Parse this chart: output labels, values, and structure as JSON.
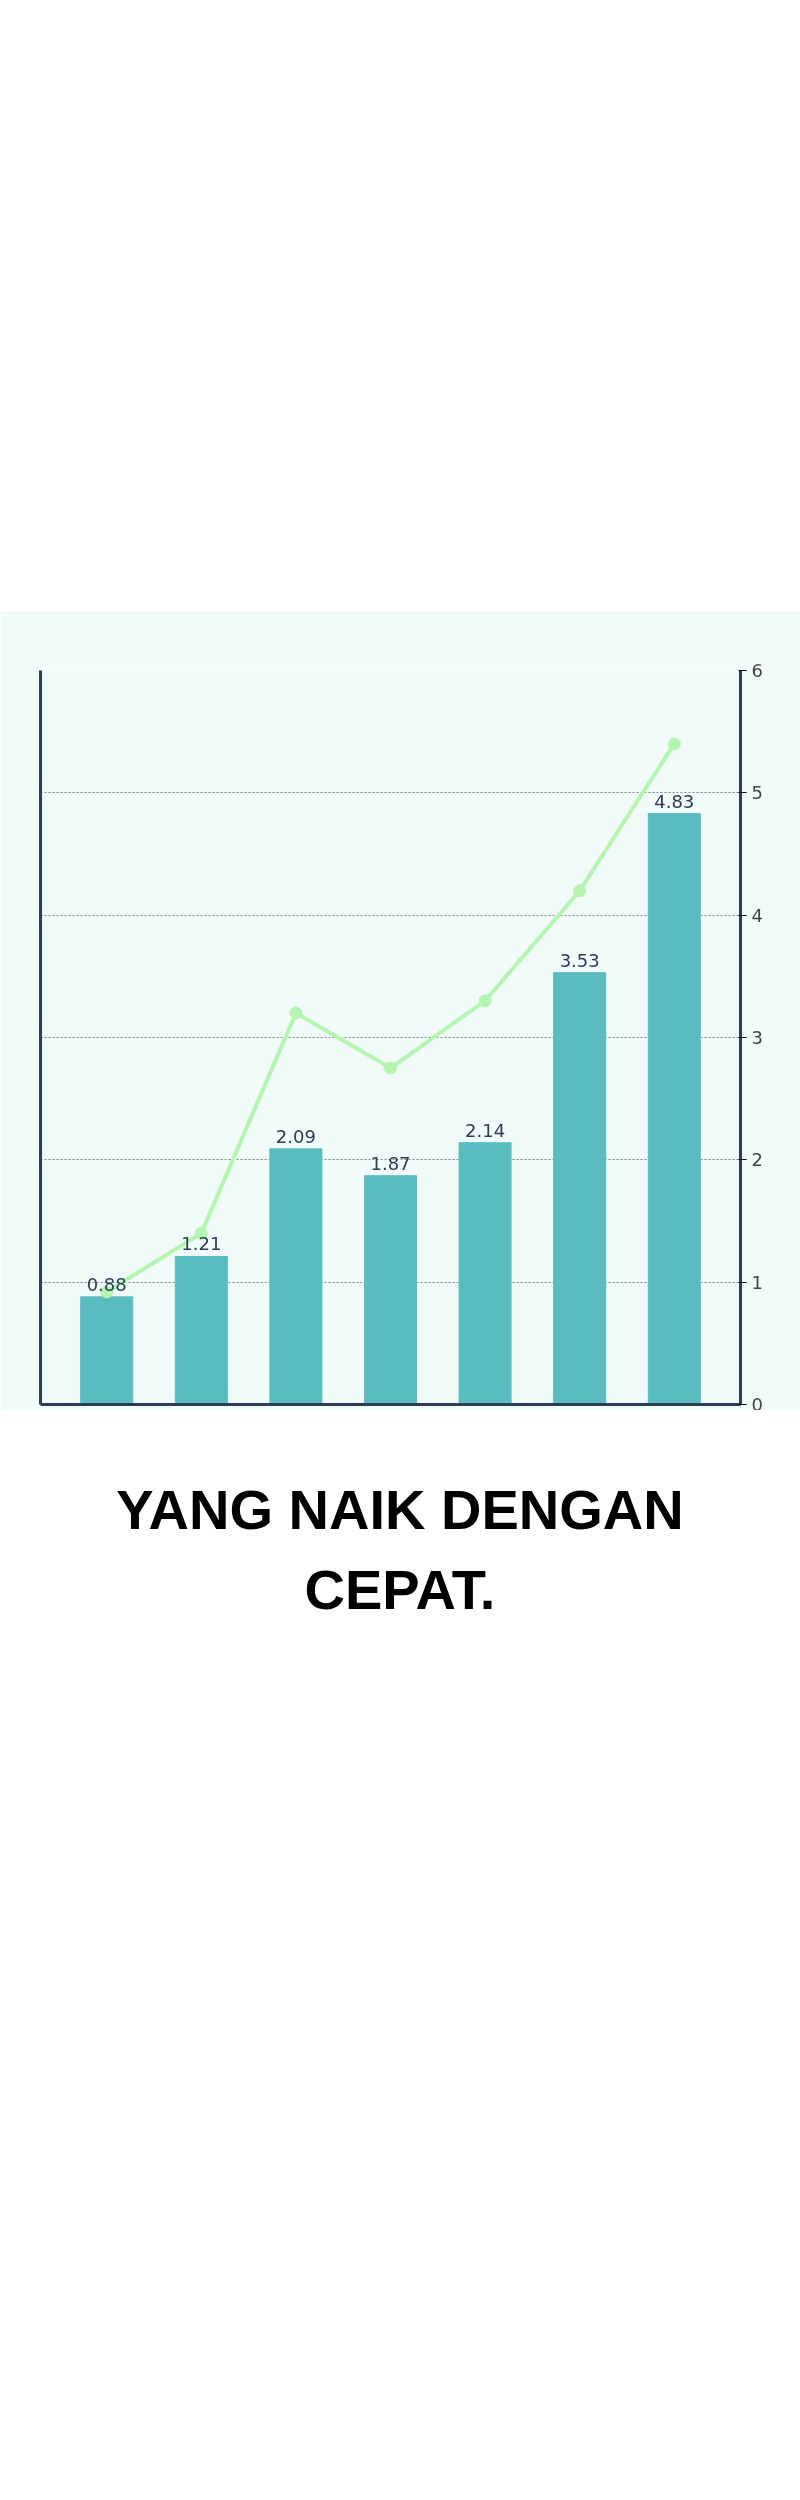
{
  "chart_data": {
    "type": "bar",
    "categories": [
      null,
      null,
      null,
      null,
      null,
      null,
      null
    ],
    "series": [
      {
        "color": "#5bbcc0",
        "values": [
          0.88,
          1.21,
          2.09,
          1.87,
          2.14,
          3.53,
          4.83
        ],
        "data_labels": true
      },
      {
        "type": "line",
        "color": "#b4f5b0",
        "values": [
          0.92,
          1.4,
          3.2,
          2.75,
          3.3,
          4.2,
          5.4
        ],
        "marker": "circle"
      }
    ],
    "ylim": [
      0,
      6
    ],
    "yticks": [
      0,
      1,
      2,
      3,
      4,
      5,
      6
    ],
    "grid": "y",
    "tick_labels": "y",
    "annotations": [
      "YANG NAIK DENGAN CEPAT."
    ]
  }
}
